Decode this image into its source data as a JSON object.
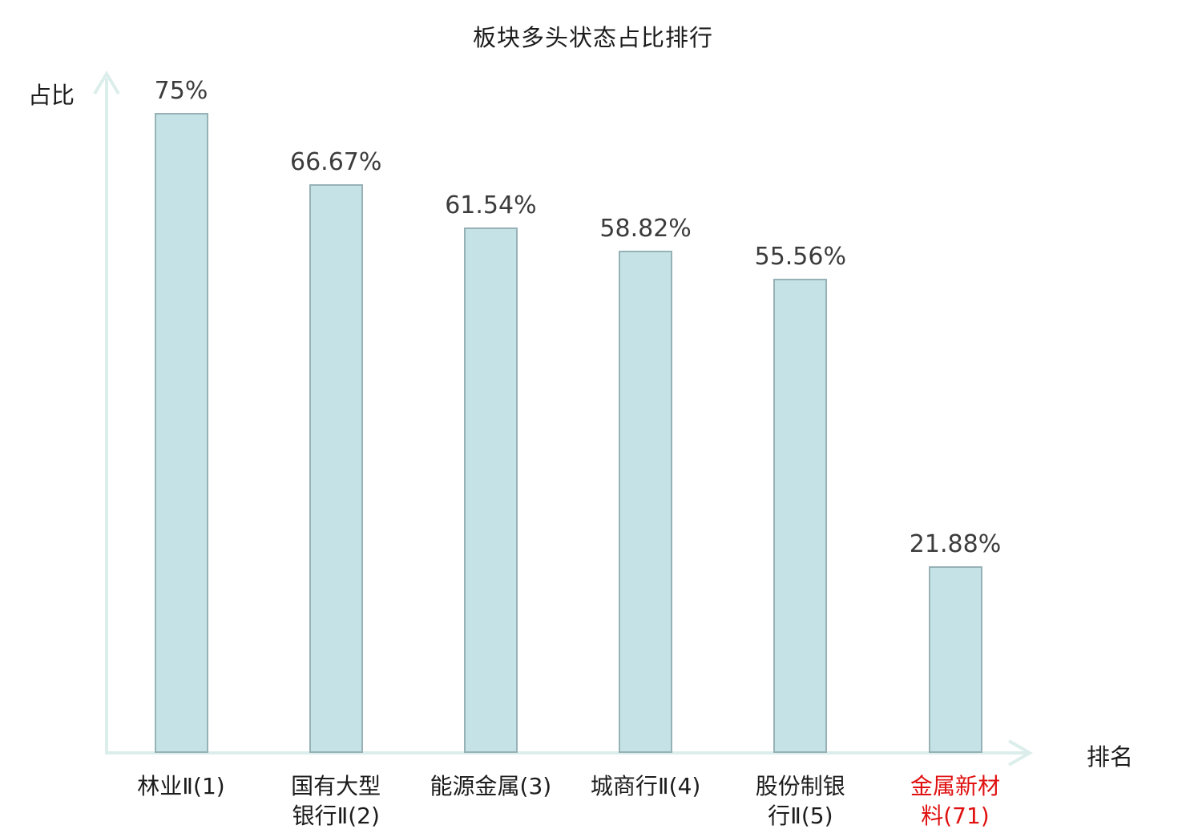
{
  "title": "板块多头状态占比排行",
  "axes": {
    "y_label": "占比",
    "x_label": "排名"
  },
  "colors": {
    "bar_fill": "#c5e3e6",
    "bar_border": "#97b2b7",
    "axis": "#dceeeb",
    "text": "#1c1c1c",
    "value_label": "#3c3c3c",
    "highlight": "#e01111",
    "background": "#ffffff"
  },
  "chart_data": {
    "type": "bar",
    "title": "板块多头状态占比排行",
    "xlabel": "排名",
    "ylabel": "占比",
    "categories": [
      "林业Ⅱ(1)",
      "国有大型\n银行Ⅱ(2)",
      "能源金属(3)",
      "城商行Ⅱ(4)",
      "股份制银\n行Ⅱ(5)",
      "金属新材\n料(71)"
    ],
    "values": [
      75,
      66.67,
      61.54,
      58.82,
      55.56,
      21.88
    ],
    "value_labels": [
      "75%",
      "66.67%",
      "61.54%",
      "58.82%",
      "55.56%",
      "21.88%"
    ],
    "highlighted_index": 5,
    "ylim": [
      0,
      79
    ],
    "grid": false,
    "legend": null
  }
}
